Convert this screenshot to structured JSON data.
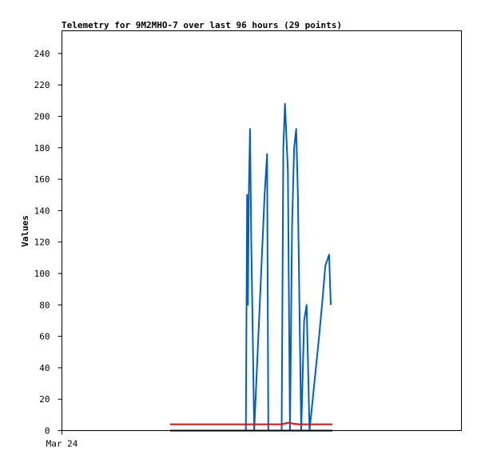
{
  "chart_data": {
    "type": "line",
    "title": "Telemetry for 9M2MHO-7 over last 96 hours (29 points)",
    "xlabel": "",
    "ylabel": "Values",
    "x_tick_labels": [
      "Mar 24"
    ],
    "xlim": [
      0,
      96
    ],
    "ylim": [
      0,
      255
    ],
    "y_ticks": [
      0,
      20,
      40,
      60,
      80,
      100,
      120,
      140,
      160,
      180,
      200,
      220,
      240
    ],
    "grid": false,
    "legend": "none",
    "series": [
      {
        "color": "#0060c0",
        "points": [
          [
            44.2,
            0
          ],
          [
            44.5,
            150
          ],
          [
            44.7,
            80
          ],
          [
            44.9,
            150
          ],
          [
            45.2,
            192
          ],
          [
            45.5,
            120
          ],
          [
            45.8,
            70
          ],
          [
            46.2,
            0
          ],
          [
            48.7,
            150
          ],
          [
            49.3,
            176
          ],
          [
            49.6,
            0
          ],
          [
            52.8,
            0
          ],
          [
            53.2,
            180
          ],
          [
            53.6,
            208
          ],
          [
            54.3,
            165
          ],
          [
            54.8,
            0
          ],
          [
            55.3,
            130
          ],
          [
            55.8,
            180
          ],
          [
            56.3,
            192
          ],
          [
            56.7,
            150
          ],
          [
            57.5,
            0
          ],
          [
            58.2,
            70
          ],
          [
            58.8,
            80
          ],
          [
            59.5,
            0
          ],
          [
            61.8,
            60
          ],
          [
            62.5,
            80
          ],
          [
            63.3,
            105
          ],
          [
            64.2,
            112
          ],
          [
            64.6,
            80
          ]
        ]
      },
      {
        "color": "#ff0000",
        "points": [
          [
            26.0,
            4
          ],
          [
            52.5,
            4
          ],
          [
            53.5,
            4.5
          ],
          [
            54.3,
            5
          ],
          [
            55.5,
            4.5
          ],
          [
            57.0,
            4
          ],
          [
            60.0,
            4
          ],
          [
            65.0,
            4
          ]
        ]
      },
      {
        "color": "#000000",
        "points": [
          [
            26.0,
            0
          ],
          [
            65.0,
            0
          ]
        ]
      }
    ]
  }
}
